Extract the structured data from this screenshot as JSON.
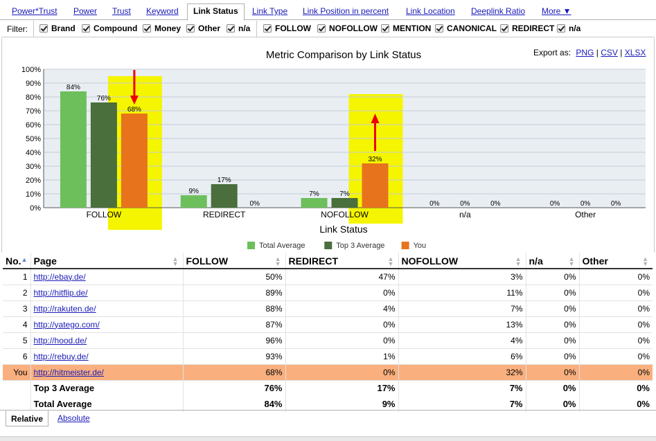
{
  "tabs": [
    {
      "label": "Power*Trust",
      "active": false
    },
    {
      "label": "Power",
      "active": false
    },
    {
      "label": "Trust",
      "active": false
    },
    {
      "label": "Keyword",
      "active": false
    },
    {
      "label": "Link Status",
      "active": true
    },
    {
      "label": "Link Type",
      "active": false
    },
    {
      "label": "Link Position in percent",
      "active": false
    },
    {
      "label": "Link Location",
      "active": false
    },
    {
      "label": "Deeplink Ratio",
      "active": false
    },
    {
      "label": "More ▼",
      "active": false
    }
  ],
  "filter": {
    "label": "Filter:",
    "group1": [
      "Brand",
      "Compound",
      "Money",
      "Other",
      "n/a"
    ],
    "group2": [
      "FOLLOW",
      "NOFOLLOW",
      "MENTION",
      "CANONICAL",
      "REDIRECT",
      "n/a"
    ]
  },
  "export": {
    "label": "Export as:",
    "links": [
      "PNG",
      "CSV",
      "XLSX"
    ],
    "separator": "|"
  },
  "colors": {
    "total_average": "#6dbf5c",
    "top3_average": "#4a6e3c",
    "you": "#e8731d",
    "highlight": "#f5f500",
    "arrow": "#ee0000",
    "plot_bg": "#e9eef3"
  },
  "chart_data": {
    "type": "bar",
    "title": "Metric Comparison by Link Status",
    "xlabel": "Link Status",
    "ylabel": "",
    "ylim": [
      0,
      100
    ],
    "yticks": [
      "0%",
      "10%",
      "20%",
      "30%",
      "40%",
      "50%",
      "60%",
      "70%",
      "80%",
      "90%",
      "100%"
    ],
    "categories": [
      "FOLLOW",
      "REDIRECT",
      "NOFOLLOW",
      "n/a",
      "Other"
    ],
    "series": [
      {
        "name": "Total Average",
        "values": [
          84,
          9,
          7,
          0,
          0
        ]
      },
      {
        "name": "Top 3 Average",
        "values": [
          76,
          17,
          7,
          0,
          0
        ]
      },
      {
        "name": "You",
        "values": [
          68,
          0,
          32,
          0,
          0
        ]
      }
    ],
    "value_suffix": "%",
    "annotations": [
      {
        "category": "FOLLOW",
        "series": "You",
        "arrow": "down"
      },
      {
        "category": "NOFOLLOW",
        "series": "You",
        "arrow": "up"
      }
    ],
    "legend_position": "bottom-center",
    "grid": true
  },
  "table": {
    "columns": [
      "No.",
      "Page",
      "FOLLOW",
      "REDIRECT",
      "NOFOLLOW",
      "n/a",
      "Other"
    ],
    "rows": [
      {
        "no": "1",
        "page": "http://ebay.de/",
        "follow": "50%",
        "redirect": "47%",
        "nofollow": "3%",
        "na": "0%",
        "other": "0%"
      },
      {
        "no": "2",
        "page": "http://hitflip.de/",
        "follow": "89%",
        "redirect": "0%",
        "nofollow": "11%",
        "na": "0%",
        "other": "0%"
      },
      {
        "no": "3",
        "page": "http://rakuten.de/",
        "follow": "88%",
        "redirect": "4%",
        "nofollow": "7%",
        "na": "0%",
        "other": "0%"
      },
      {
        "no": "4",
        "page": "http://yatego.com/",
        "follow": "87%",
        "redirect": "0%",
        "nofollow": "13%",
        "na": "0%",
        "other": "0%"
      },
      {
        "no": "5",
        "page": "http://hood.de/",
        "follow": "96%",
        "redirect": "0%",
        "nofollow": "4%",
        "na": "0%",
        "other": "0%"
      },
      {
        "no": "6",
        "page": "http://rebuy.de/",
        "follow": "93%",
        "redirect": "1%",
        "nofollow": "6%",
        "na": "0%",
        "other": "0%"
      },
      {
        "no": "You",
        "page": "http://hitmeister.de/",
        "follow": "68%",
        "redirect": "0%",
        "nofollow": "32%",
        "na": "0%",
        "other": "0%",
        "highlight": true
      }
    ],
    "summary": [
      {
        "label": "Top 3 Average",
        "follow": "76%",
        "redirect": "17%",
        "nofollow": "7%",
        "na": "0%",
        "other": "0%"
      },
      {
        "label": "Total Average",
        "follow": "84%",
        "redirect": "9%",
        "nofollow": "7%",
        "na": "0%",
        "other": "0%"
      }
    ]
  },
  "bottom_tabs": [
    {
      "label": "Relative",
      "active": true
    },
    {
      "label": "Absolute",
      "active": false
    }
  ]
}
